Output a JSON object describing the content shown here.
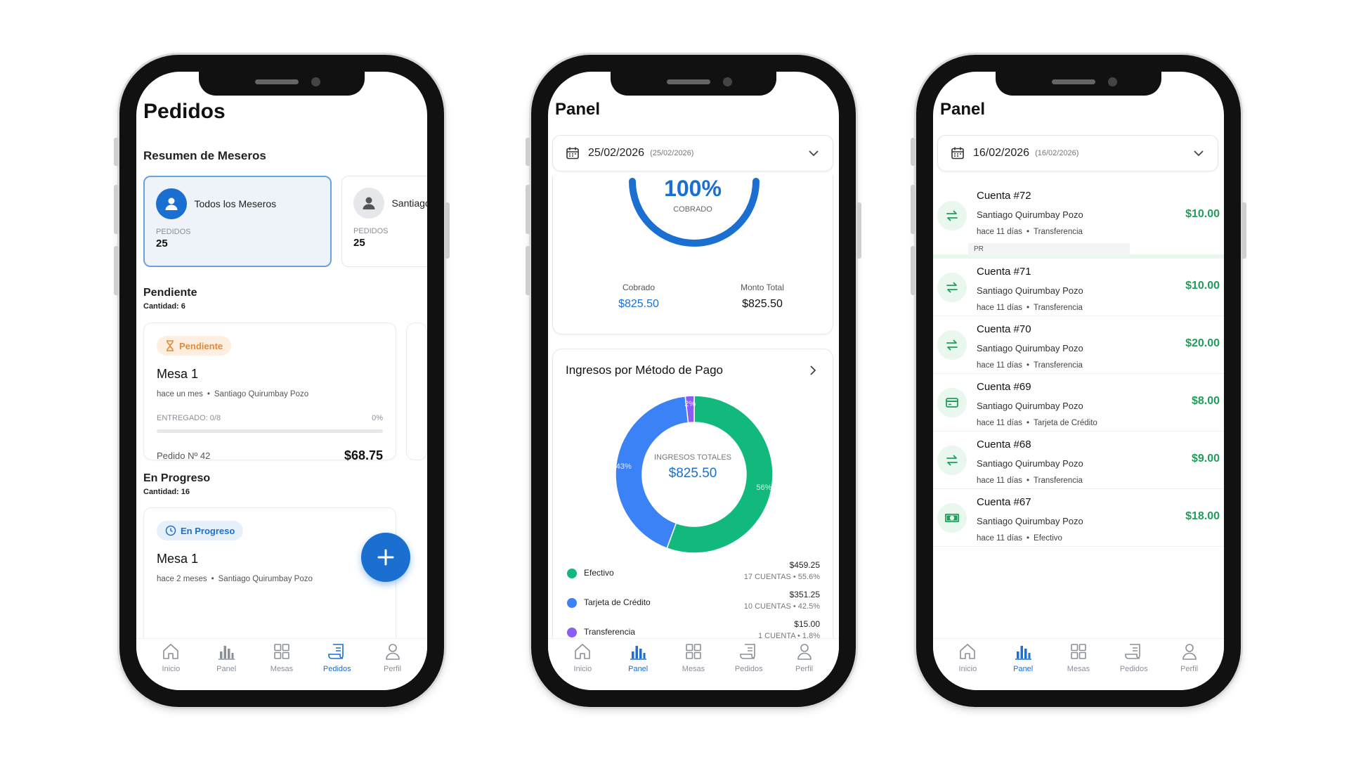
{
  "colors": {
    "primary": "#1a6fd1",
    "success": "#1e9e5a",
    "efectivo": "#12b97c",
    "tarjeta": "#3b82f6",
    "transferencia": "#8b5cf6",
    "pending": "#e28a3b"
  },
  "nav": {
    "items": [
      {
        "label": "Inicio",
        "icon": "home-icon"
      },
      {
        "label": "Panel",
        "icon": "bar-chart-icon"
      },
      {
        "label": "Mesas",
        "icon": "grid-icon"
      },
      {
        "label": "Pedidos",
        "icon": "receipt-icon"
      },
      {
        "label": "Perfil",
        "icon": "user-icon"
      }
    ]
  },
  "phone1": {
    "title": "Pedidos",
    "waiters_title": "Resumen de Meseros",
    "waiters": [
      {
        "name": "Todos los Meseros",
        "label": "PEDIDOS",
        "count": "25"
      },
      {
        "name": "Santiago",
        "label": "PEDIDOS",
        "count": "25"
      }
    ],
    "pending": {
      "title": "Pendiente",
      "count_label": "Cantidad: 6",
      "card": {
        "badge": "Pendiente",
        "table": "Mesa 1",
        "time": "hace un mes",
        "waiter": "Santiago Quirumbay Pozo",
        "delivered_label": "ENTREGADO: 0/8",
        "delivered_pct": "0%",
        "delivered_fraction": 0,
        "order_no": "Pedido Nº 42",
        "amount": "$68.75"
      }
    },
    "progress": {
      "title": "En Progreso",
      "count_label": "Cantidad: 16",
      "card": {
        "badge": "En Progreso",
        "table": "Mesa 1",
        "time": "hace 2 meses",
        "waiter": "Santiago Quirumbay Pozo"
      }
    },
    "active_nav": "Pedidos"
  },
  "phone2": {
    "title": "Panel",
    "date": "25/02/2026",
    "date_sub": "(25/02/2026)",
    "collected_pct": "100%",
    "collected_word": "COBRADO",
    "collected_label": "Cobrado",
    "collected_value": "$825.50",
    "total_label": "Monto Total",
    "total_value": "$825.50",
    "methods_title": "Ingresos por Método de Pago",
    "donut_label": "INGRESOS TOTALES",
    "donut_value": "$825.50",
    "active_nav": "Panel"
  },
  "chart_data": {
    "type": "pie",
    "title": "Ingresos por Método de Pago",
    "categories": [
      "Efectivo",
      "Tarjeta de Crédito",
      "Transferencia"
    ],
    "values": [
      459.25,
      351.25,
      15.0
    ],
    "percent_labels": [
      "56%",
      "43%",
      "2%"
    ],
    "amounts": [
      "$459.25",
      "$351.25",
      "$15.00"
    ],
    "counts": [
      "17 CUENTAS • 55.6%",
      "10 CUENTAS • 42.5%",
      "1 CUENTA • 1.8%"
    ]
  },
  "phone3": {
    "title": "Panel",
    "date": "16/02/2026",
    "date_sub": "(16/02/2026)",
    "pr_tag": "PR",
    "accounts": [
      {
        "title": "Cuenta #72",
        "name": "Santiago Quirumbay Pozo",
        "time": "hace 11 días",
        "method": "Transferencia",
        "amount": "$10.00",
        "icon": "transfer-icon"
      },
      {
        "title": "Cuenta #71",
        "name": "Santiago Quirumbay Pozo",
        "time": "hace 11 días",
        "method": "Transferencia",
        "amount": "$10.00",
        "icon": "transfer-icon"
      },
      {
        "title": "Cuenta #70",
        "name": "Santiago Quirumbay Pozo",
        "time": "hace 11 días",
        "method": "Transferencia",
        "amount": "$20.00",
        "icon": "transfer-icon"
      },
      {
        "title": "Cuenta #69",
        "name": "Santiago Quirumbay Pozo",
        "time": "hace 11 días",
        "method": "Tarjeta de Crédito",
        "amount": "$8.00",
        "icon": "credit-card-icon"
      },
      {
        "title": "Cuenta #68",
        "name": "Santiago Quirumbay Pozo",
        "time": "hace 11 días",
        "method": "Transferencia",
        "amount": "$9.00",
        "icon": "transfer-icon"
      },
      {
        "title": "Cuenta #67",
        "name": "Santiago Quirumbay Pozo",
        "time": "hace 11 días",
        "method": "Efectivo",
        "amount": "$18.00",
        "icon": "cash-icon"
      }
    ],
    "active_nav": "Panel"
  }
}
